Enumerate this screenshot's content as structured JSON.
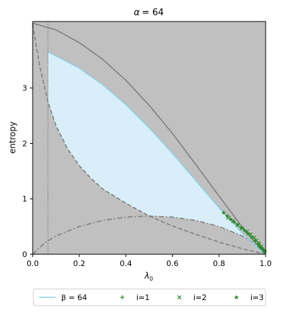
{
  "chart_data": {
    "type": "line",
    "title_prefix": "α",
    "title_value": "= 64",
    "xlabel_base": "λ",
    "xlabel_sub": "0",
    "ylabel": "entropy",
    "xlim": [
      0.0,
      1.0
    ],
    "ylim": [
      0.0,
      4.2
    ],
    "x_ticks": [
      "0.0",
      "0.2",
      "0.4",
      "0.6",
      "0.8",
      "1.0"
    ],
    "y_ticks": [
      "0",
      "1",
      "2",
      "3"
    ],
    "colors": {
      "background": "#c0c0c0",
      "feasible_fill": "#d9eef8",
      "beta_line": "#87cfe9",
      "boundary": "#7f7f7f",
      "markers": "#2a8a2a"
    },
    "vertical_line_x": 0.0656,
    "upper_bound": {
      "x": [
        0.0,
        0.1,
        0.2,
        0.3,
        0.4,
        0.5,
        0.6,
        0.7,
        0.8,
        0.9,
        0.95,
        1.0
      ],
      "y": [
        4.17,
        4.05,
        3.82,
        3.52,
        3.14,
        2.69,
        2.18,
        1.62,
        1.05,
        0.49,
        0.24,
        0.0
      ]
    },
    "dashed_curve": {
      "x": [
        0.0,
        0.03,
        0.0656,
        0.1,
        0.15,
        0.2,
        0.25,
        0.3,
        0.4,
        0.5,
        0.6,
        0.7,
        0.8,
        0.9,
        1.0
      ],
      "y": [
        4.15,
        3.4,
        2.75,
        2.32,
        1.9,
        1.6,
        1.37,
        1.18,
        0.92,
        0.69,
        0.51,
        0.36,
        0.22,
        0.1,
        0.0
      ]
    },
    "dashdot_curve": {
      "x": [
        0.0,
        0.05,
        0.1,
        0.2,
        0.3,
        0.4,
        0.5,
        0.6,
        0.7,
        0.8,
        0.9,
        0.95,
        1.0
      ],
      "y": [
        0.0,
        0.2,
        0.33,
        0.5,
        0.61,
        0.67,
        0.69,
        0.67,
        0.61,
        0.5,
        0.33,
        0.2,
        0.0
      ]
    },
    "series": [
      {
        "name": "β = 64",
        "style": "line",
        "x": [
          0.0656,
          0.1,
          0.2,
          0.3,
          0.4,
          0.5,
          0.6,
          0.7,
          0.8,
          0.9,
          0.95,
          1.0
        ],
        "y": [
          3.65,
          3.58,
          3.36,
          3.06,
          2.7,
          2.28,
          1.82,
          1.33,
          0.84,
          0.38,
          0.17,
          0.0
        ]
      },
      {
        "name": "i=1",
        "style": "marker-plus",
        "x": [
          0.97,
          0.975,
          0.98,
          0.985,
          0.99,
          0.993,
          0.996
        ],
        "y": [
          0.19,
          0.15,
          0.12,
          0.1,
          0.08,
          0.06,
          0.04
        ]
      },
      {
        "name": "i=2",
        "style": "marker-x",
        "x": [
          0.84,
          0.86,
          0.88,
          0.9,
          0.92,
          0.935,
          0.95,
          0.96,
          0.97,
          0.98
        ],
        "y": [
          0.66,
          0.6,
          0.53,
          0.47,
          0.41,
          0.36,
          0.3,
          0.25,
          0.2,
          0.14
        ]
      },
      {
        "name": "i=3",
        "style": "marker-star",
        "x": [
          0.82,
          0.835,
          0.85,
          0.865,
          0.88,
          0.895,
          0.91,
          0.925,
          0.94,
          0.955,
          0.97,
          0.985,
          0.995
        ],
        "y": [
          0.75,
          0.69,
          0.63,
          0.58,
          0.53,
          0.48,
          0.43,
          0.37,
          0.31,
          0.25,
          0.18,
          0.11,
          0.06
        ]
      }
    ],
    "legend_position": "below"
  }
}
